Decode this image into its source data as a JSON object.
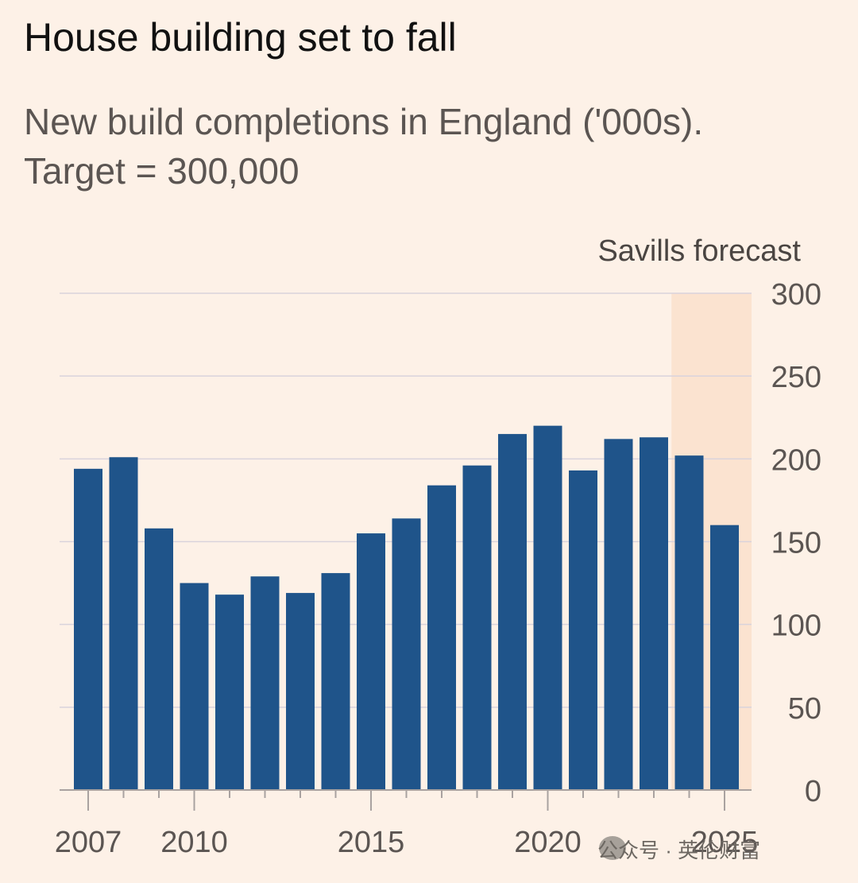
{
  "chart_data": {
    "type": "bar",
    "title": "House building set to fall",
    "subtitle": "New build completions in England ('000s). Target = 300,000",
    "forecast_label": "Savills forecast",
    "forecast_start": 2024,
    "categories": [
      2007,
      2008,
      2009,
      2010,
      2011,
      2012,
      2013,
      2014,
      2015,
      2016,
      2017,
      2018,
      2019,
      2020,
      2021,
      2022,
      2023,
      2024,
      2025
    ],
    "values": [
      194,
      201,
      158,
      125,
      118,
      129,
      119,
      131,
      155,
      164,
      184,
      196,
      215,
      220,
      193,
      212,
      213,
      202,
      160
    ],
    "ylim": [
      0,
      300
    ],
    "yticks": [
      0,
      50,
      100,
      150,
      200,
      250,
      300
    ],
    "xtick_labels": [
      2007,
      2010,
      2015,
      2020,
      2025
    ],
    "grid": true,
    "colors": {
      "bar": "#1f548a",
      "forecast_band": "#fbe3d0",
      "grid": "#d9d3dc",
      "background": "#fdf1e7"
    }
  },
  "watermark": "公众号 · 英伦财富"
}
